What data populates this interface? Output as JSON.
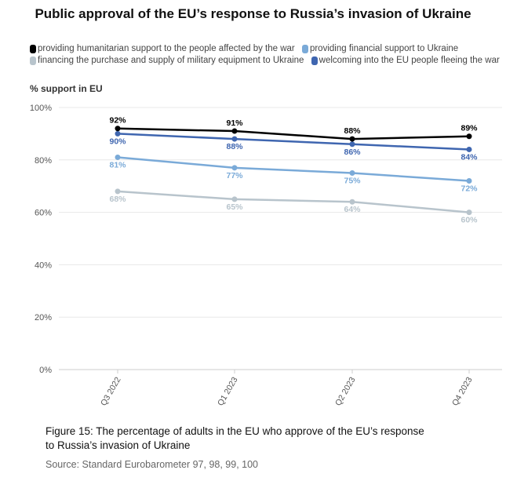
{
  "chart_data": {
    "type": "line",
    "title": "Public approval of the EU’s response to Russia’s invasion of Ukraine",
    "ylabel": "% support in EU",
    "xlabel": "",
    "categories": [
      "Q3 2022",
      "Q1 2023",
      "Q2 2023",
      "Q4 2023"
    ],
    "ylim": [
      0,
      100
    ],
    "yticks": [
      "0%",
      "20%",
      "40%",
      "60%",
      "80%",
      "100%"
    ],
    "grid": true,
    "legend_position": "top",
    "series": [
      {
        "name": "providing humanitarian support to the people affected by the war",
        "color": "#000000",
        "values": [
          92,
          91,
          88,
          89
        ]
      },
      {
        "name": "providing financial support to Ukraine",
        "color": "#7aaad8",
        "values": [
          81,
          77,
          75,
          72
        ]
      },
      {
        "name": "financing the purchase and supply of military equipment to Ukraine",
        "color": "#b8c4cc",
        "values": [
          68,
          65,
          64,
          60
        ]
      },
      {
        "name": "welcoming into the EU people fleeing the war",
        "color": "#3f66b0",
        "values": [
          90,
          88,
          86,
          84
        ]
      }
    ]
  },
  "caption": {
    "line1": "Figure 15: The percentage of adults in the EU who approve of the EU’s response",
    "line2": "to Russia’s invasion of Ukraine",
    "source": "Source: Standard Eurobarometer 97, 98, 99, 100"
  }
}
